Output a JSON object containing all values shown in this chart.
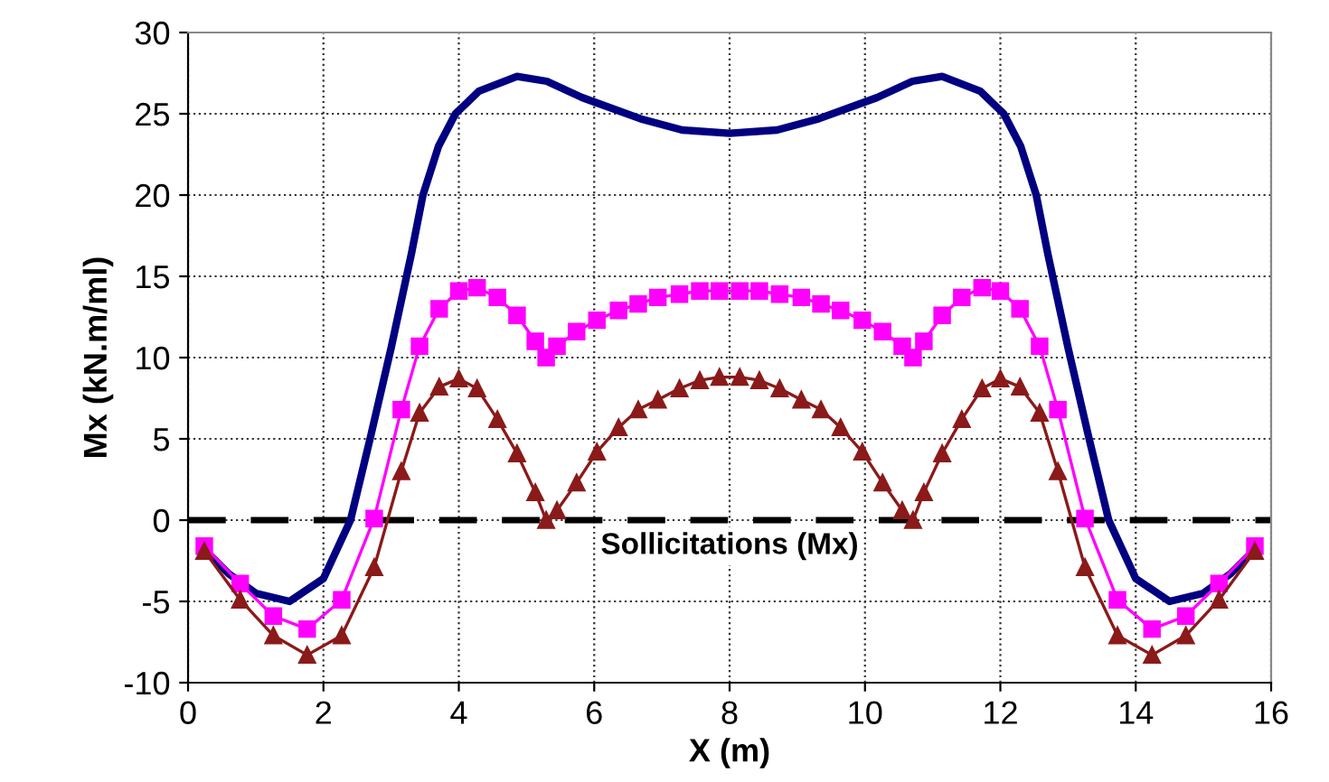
{
  "chart_data": {
    "type": "line",
    "xlabel": "X (m)",
    "ylabel": "Mx (kN.m/ml)",
    "annotations": [
      "Sollicitations (Mx)"
    ],
    "xlim": [
      0,
      16
    ],
    "xticks": [
      0,
      2,
      4,
      6,
      8,
      10,
      12,
      14,
      16
    ],
    "ylim": [
      -10,
      30
    ],
    "yticks": [
      -10,
      -5,
      0,
      5,
      10,
      15,
      20,
      25,
      30
    ],
    "grid": true,
    "legend": false,
    "ref_lines": [
      {
        "axis": "y",
        "value": 0,
        "color": "#000000",
        "line_style": "dashed"
      }
    ],
    "series": [
      {
        "color": "#000080",
        "marker": "none",
        "x": [
          0.24,
          0.6,
          1.0,
          1.5,
          2.0,
          2.4,
          2.7,
          3.0,
          3.3,
          3.47,
          3.7,
          3.95,
          4.3,
          4.86,
          5.3,
          5.82,
          6.68,
          7.3,
          8.0,
          8.7,
          9.32,
          10.18,
          10.7,
          11.14,
          11.7,
          12.05,
          12.3,
          12.53,
          12.7,
          13.0,
          13.3,
          13.6,
          14.0,
          14.5,
          15.0,
          15.4,
          15.76
        ],
        "values": [
          -1.8,
          -3.3,
          -4.5,
          -5.0,
          -3.6,
          0,
          5.2,
          10.6,
          16.4,
          20,
          23,
          25,
          26.4,
          27.3,
          27.0,
          26.0,
          24.7,
          24.0,
          23.8,
          24.0,
          24.7,
          26.0,
          27.0,
          27.3,
          26.4,
          25,
          23,
          20,
          16.4,
          10.6,
          5.2,
          0,
          -3.6,
          -5.0,
          -4.5,
          -3.3,
          -1.8
        ]
      },
      {
        "color": "#ff00ff",
        "marker": "square",
        "x": [
          0.24,
          0.77,
          1.26,
          1.76,
          2.27,
          2.75,
          3.15,
          3.42,
          3.71,
          4.0,
          4.27,
          4.57,
          4.86,
          5.13,
          5.29,
          5.45,
          5.74,
          6.04,
          6.36,
          6.65,
          6.94,
          7.26,
          7.56,
          7.85,
          8.15,
          8.44,
          8.74,
          9.06,
          9.35,
          9.64,
          9.96,
          10.26,
          10.55,
          10.71,
          10.87,
          11.14,
          11.43,
          11.73,
          12.0,
          12.29,
          12.58,
          12.85,
          13.25,
          13.73,
          14.24,
          14.74,
          15.23,
          15.76
        ],
        "values": [
          -1.6,
          -3.9,
          -5.9,
          -6.7,
          -4.9,
          0.1,
          6.8,
          10.7,
          13.0,
          14.1,
          14.3,
          13.7,
          12.6,
          11.0,
          10.0,
          10.7,
          11.6,
          12.3,
          12.9,
          13.3,
          13.7,
          13.9,
          14.1,
          14.1,
          14.1,
          14.1,
          13.9,
          13.7,
          13.3,
          12.9,
          12.3,
          11.6,
          10.7,
          10.0,
          11.0,
          12.6,
          13.7,
          14.3,
          14.1,
          13.0,
          10.7,
          6.8,
          0.1,
          -4.9,
          -6.7,
          -5.9,
          -3.9,
          -1.6
        ]
      },
      {
        "color": "#8b1a1a",
        "marker": "triangle",
        "x": [
          0.24,
          0.77,
          1.26,
          1.76,
          2.27,
          2.75,
          3.15,
          3.42,
          3.71,
          4.0,
          4.27,
          4.57,
          4.86,
          5.13,
          5.29,
          5.45,
          5.74,
          6.04,
          6.36,
          6.65,
          6.94,
          7.26,
          7.56,
          7.85,
          8.15,
          8.44,
          8.74,
          9.06,
          9.35,
          9.64,
          9.96,
          10.26,
          10.55,
          10.71,
          10.87,
          11.14,
          11.43,
          11.73,
          12.0,
          12.29,
          12.58,
          12.85,
          13.25,
          13.73,
          14.24,
          14.74,
          15.23,
          15.76
        ],
        "values": [
          -1.9,
          -4.9,
          -7.1,
          -8.3,
          -7.1,
          -2.9,
          3.0,
          6.6,
          8.2,
          8.7,
          8.1,
          6.2,
          4.1,
          1.7,
          0,
          0.6,
          2.3,
          4.2,
          5.7,
          6.8,
          7.4,
          8.1,
          8.6,
          8.8,
          8.8,
          8.6,
          8.1,
          7.4,
          6.8,
          5.7,
          4.2,
          2.3,
          0.6,
          0,
          1.7,
          4.1,
          6.2,
          8.1,
          8.7,
          8.2,
          6.6,
          3.0,
          -2.9,
          -7.1,
          -8.3,
          -7.1,
          -4.9,
          -1.9
        ]
      }
    ]
  }
}
